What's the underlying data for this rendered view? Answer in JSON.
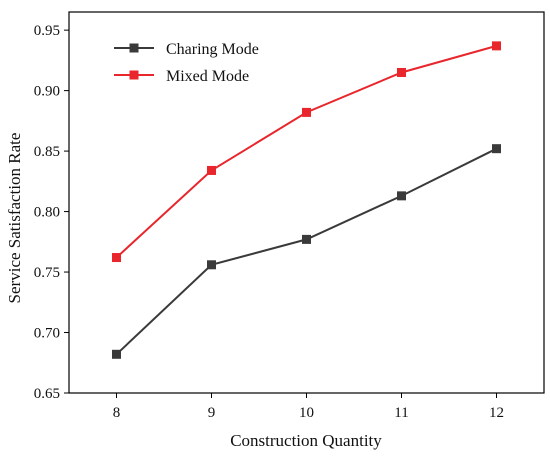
{
  "chart_data": {
    "type": "line",
    "title": "",
    "xlabel": "Construction Quantity",
    "ylabel": "Service Satisfaction Rate",
    "x": [
      8,
      9,
      10,
      11,
      12
    ],
    "x_tick_labels": [
      "8",
      "9",
      "10",
      "11",
      "12"
    ],
    "xlim": [
      7.5,
      12.5
    ],
    "ylim": [
      0.65,
      0.965
    ],
    "y_ticks": [
      0.65,
      0.7,
      0.75,
      0.8,
      0.85,
      0.9,
      0.95
    ],
    "y_tick_labels": [
      "0.65",
      "0.70",
      "0.75",
      "0.80",
      "0.85",
      "0.90",
      "0.95"
    ],
    "grid": false,
    "legend_position": "top-left",
    "series": [
      {
        "name": "Charing Mode",
        "color": "#3a3a3a",
        "marker": "square",
        "values": [
          0.682,
          0.756,
          0.777,
          0.813,
          0.852
        ]
      },
      {
        "name": "Mixed Mode",
        "color": "#e8262b",
        "marker": "square",
        "values": [
          0.762,
          0.834,
          0.882,
          0.915,
          0.937
        ]
      }
    ]
  }
}
